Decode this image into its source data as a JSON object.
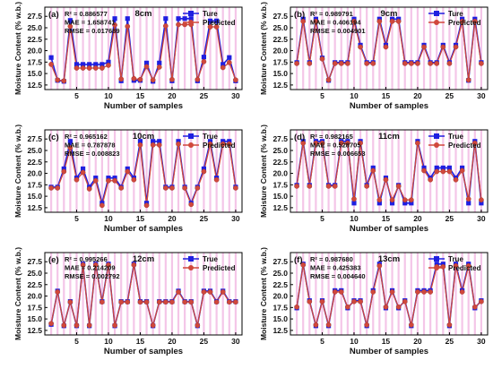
{
  "figure": {
    "ylabel": "Moisture Content (% w.b.)",
    "xlabel": "Number of samples"
  },
  "chart_data": [
    {
      "type": "line",
      "panel": "(a)",
      "title": "8cm",
      "stats": [
        "R² = 0.886577",
        "MAE = 1.658741",
        "RMSE = 0.017689"
      ],
      "legend_position": "top-right",
      "xlabel": "Number of samples",
      "ylabel": "Moisture Content (% w.b.)",
      "xlim": [
        0,
        31
      ],
      "ylim": [
        11.5,
        29.5
      ],
      "xticks": [
        5,
        10,
        15,
        20,
        25,
        30
      ],
      "yticks": [
        12.5,
        15.0,
        17.5,
        20.0,
        22.5,
        25.0,
        27.5
      ],
      "x": [
        1,
        2,
        3,
        4,
        5,
        6,
        7,
        8,
        9,
        10,
        11,
        12,
        13,
        14,
        15,
        16,
        17,
        18,
        19,
        20,
        21,
        22,
        23,
        24,
        25,
        26,
        27,
        28,
        29,
        30
      ],
      "series": [
        {
          "name": "Ture",
          "color": "#1f1fe0",
          "marker": "square",
          "values": [
            18.5,
            13.5,
            13.3,
            26.6,
            17.0,
            17.0,
            17.0,
            17.0,
            17.0,
            17.5,
            27.0,
            13.4,
            27.0,
            13.5,
            13.5,
            17.3,
            13.3,
            17.3,
            27.0,
            13.4,
            27.0,
            27.0,
            27.0,
            13.4,
            18.6,
            26.5,
            26.5,
            17.0,
            18.5,
            13.4
          ]
        },
        {
          "name": "Predicted",
          "color": "#d0483c",
          "marker": "circle",
          "values": [
            17.0,
            13.6,
            13.4,
            25.3,
            16.2,
            16.2,
            16.2,
            16.2,
            16.2,
            16.8,
            25.6,
            13.8,
            25.3,
            13.9,
            13.7,
            16.5,
            13.6,
            16.4,
            25.4,
            13.7,
            25.7,
            25.7,
            25.7,
            13.7,
            17.6,
            25.2,
            25.2,
            16.3,
            17.4,
            13.6
          ]
        }
      ]
    },
    {
      "type": "line",
      "panel": "(b)",
      "title": "9cm",
      "stats": [
        "R² = 0.989791",
        "MAE = 0.406194",
        "RMSE = 0.004901"
      ],
      "legend_position": "top-right",
      "xlabel": "Number of samples",
      "ylabel": "Moisture Content (% w.b.)",
      "xlim": [
        0,
        31
      ],
      "ylim": [
        11.5,
        29.5
      ],
      "xticks": [
        5,
        10,
        15,
        20,
        25,
        30
      ],
      "yticks": [
        12.5,
        15.0,
        17.5,
        20.0,
        22.5,
        25.0,
        27.5
      ],
      "x": [
        1,
        2,
        3,
        4,
        5,
        6,
        7,
        8,
        9,
        10,
        11,
        12,
        13,
        14,
        15,
        16,
        17,
        18,
        19,
        20,
        21,
        22,
        23,
        24,
        25,
        26,
        27,
        28,
        29,
        30
      ],
      "series": [
        {
          "name": "Ture",
          "color": "#1f1fe0",
          "marker": "square",
          "values": [
            17.4,
            26.9,
            17.4,
            26.9,
            18.4,
            13.5,
            17.4,
            17.4,
            17.4,
            26.9,
            21.2,
            17.4,
            17.4,
            26.9,
            21.2,
            26.9,
            26.9,
            17.4,
            17.4,
            17.4,
            21.2,
            17.4,
            17.4,
            21.2,
            17.4,
            21.2,
            26.9,
            13.5,
            26.9,
            17.4
          ]
        },
        {
          "name": "Predicted",
          "color": "#d0483c",
          "marker": "circle",
          "values": [
            17.2,
            26.4,
            17.2,
            26.4,
            18.2,
            13.6,
            17.2,
            17.2,
            17.2,
            26.4,
            20.8,
            17.2,
            17.2,
            26.4,
            20.8,
            26.4,
            26.4,
            17.2,
            17.2,
            17.2,
            20.8,
            17.2,
            17.2,
            20.8,
            17.2,
            20.8,
            26.4,
            13.6,
            26.4,
            17.2
          ]
        }
      ]
    },
    {
      "type": "line",
      "panel": "(c)",
      "title": "10cm",
      "stats": [
        "R² = 0.965162",
        "MAE = 0.787878",
        "RMSE = 0.008823"
      ],
      "legend_position": "top-right",
      "xlabel": "Number of samples",
      "ylabel": "Moisture Content (% w.b.)",
      "xlim": [
        0,
        31
      ],
      "ylim": [
        11.5,
        29.5
      ],
      "xticks": [
        5,
        10,
        15,
        20,
        25,
        30
      ],
      "yticks": [
        12.5,
        15.0,
        17.5,
        20.0,
        22.5,
        25.0,
        27.5
      ],
      "x": [
        1,
        2,
        3,
        4,
        5,
        6,
        7,
        8,
        9,
        10,
        11,
        12,
        13,
        14,
        15,
        16,
        17,
        18,
        19,
        20,
        21,
        22,
        23,
        24,
        25,
        26,
        27,
        28,
        29,
        30
      ],
      "series": [
        {
          "name": "True",
          "color": "#1f1fe0",
          "marker": "square",
          "values": [
            17.0,
            17.0,
            21.0,
            27.0,
            19.0,
            21.0,
            17.0,
            19.0,
            13.5,
            19.0,
            19.0,
            17.0,
            21.0,
            19.0,
            27.0,
            13.5,
            27.0,
            27.0,
            17.0,
            17.0,
            27.0,
            17.0,
            13.5,
            17.0,
            21.0,
            27.0,
            19.0,
            27.0,
            27.0,
            17.0
          ]
        },
        {
          "name": "Predicted",
          "color": "#d0483c",
          "marker": "circle",
          "values": [
            16.8,
            16.8,
            20.4,
            25.6,
            18.6,
            20.2,
            16.6,
            18.4,
            13.0,
            18.4,
            18.4,
            16.8,
            20.4,
            18.6,
            26.2,
            13.0,
            26.2,
            26.2,
            16.8,
            16.8,
            26.4,
            16.8,
            13.2,
            16.8,
            20.4,
            26.4,
            18.6,
            26.4,
            26.4,
            16.8
          ]
        }
      ]
    },
    {
      "type": "line",
      "panel": "(d)",
      "title": "11cm",
      "stats": [
        "R² = 0.982165",
        "MAE = 0.528705",
        "RMSE = 0.006653"
      ],
      "legend_position": "top-right",
      "xlabel": "Number of samples",
      "ylabel": "Moisture Content (% w.b.)",
      "xlim": [
        0,
        31
      ],
      "ylim": [
        11.5,
        29.5
      ],
      "xticks": [
        5,
        10,
        15,
        20,
        25,
        30
      ],
      "yticks": [
        12.5,
        15.0,
        17.5,
        20.0,
        22.5,
        25.0,
        27.5
      ],
      "x": [
        1,
        2,
        3,
        4,
        5,
        6,
        7,
        8,
        9,
        10,
        11,
        12,
        13,
        14,
        15,
        16,
        17,
        18,
        19,
        20,
        21,
        22,
        23,
        24,
        25,
        26,
        27,
        28,
        29,
        30
      ],
      "series": [
        {
          "name": "True",
          "color": "#1f1fe0",
          "marker": "square",
          "values": [
            17.4,
            27.0,
            17.4,
            27.0,
            27.0,
            17.4,
            17.4,
            27.0,
            27.0,
            13.5,
            27.0,
            17.4,
            21.2,
            13.5,
            19.0,
            13.5,
            17.4,
            13.5,
            13.5,
            27.0,
            21.2,
            19.0,
            21.2,
            21.2,
            21.2,
            19.0,
            21.2,
            13.5,
            27.0,
            13.5
          ]
        },
        {
          "name": "Predicted",
          "color": "#d0483c",
          "marker": "circle",
          "values": [
            17.2,
            26.6,
            17.2,
            26.6,
            26.6,
            17.2,
            17.2,
            26.6,
            26.6,
            14.4,
            26.6,
            17.2,
            20.6,
            14.2,
            18.6,
            14.2,
            17.2,
            14.2,
            14.2,
            26.6,
            20.6,
            18.6,
            20.4,
            20.4,
            20.4,
            18.6,
            20.6,
            14.4,
            26.6,
            14.2
          ]
        }
      ]
    },
    {
      "type": "line",
      "panel": "(e)",
      "title": "12cm",
      "stats": [
        "R² = 0.995266",
        "MAE = 0.214209",
        "RMSE = 0.002792"
      ],
      "legend_position": "top-right",
      "xlabel": "Number of samples",
      "ylabel": "Moisture Content (% w.b.)",
      "xlim": [
        0,
        31
      ],
      "ylim": [
        11.5,
        29.5
      ],
      "xticks": [
        5,
        10,
        15,
        20,
        25,
        30
      ],
      "yticks": [
        12.5,
        15.0,
        17.5,
        20.0,
        22.5,
        25.0,
        27.5
      ],
      "x": [
        1,
        2,
        3,
        4,
        5,
        6,
        7,
        8,
        9,
        10,
        11,
        12,
        13,
        14,
        15,
        16,
        17,
        18,
        19,
        20,
        21,
        22,
        23,
        24,
        25,
        26,
        27,
        28,
        29,
        30
      ],
      "series": [
        {
          "name": "True",
          "color": "#1f1fe0",
          "marker": "square",
          "values": [
            13.8,
            21.1,
            13.5,
            18.8,
            13.5,
            27.0,
            13.5,
            27.0,
            18.8,
            27.0,
            13.5,
            18.8,
            18.8,
            27.0,
            18.8,
            18.8,
            13.5,
            18.8,
            18.8,
            18.8,
            21.1,
            18.8,
            18.8,
            13.5,
            21.1,
            21.1,
            18.8,
            21.1,
            18.8,
            18.8
          ]
        },
        {
          "name": "Predicted",
          "color": "#d0483c",
          "marker": "circle",
          "values": [
            14.0,
            20.9,
            13.6,
            18.7,
            13.6,
            26.8,
            13.6,
            26.8,
            18.7,
            26.8,
            13.6,
            18.7,
            18.7,
            26.8,
            18.7,
            18.7,
            13.6,
            18.7,
            18.7,
            18.7,
            20.9,
            18.7,
            18.7,
            13.6,
            20.9,
            20.9,
            18.7,
            20.9,
            18.7,
            18.7
          ]
        }
      ]
    },
    {
      "type": "line",
      "panel": "(f)",
      "title": "13cm",
      "stats": [
        "R² = 0.987680",
        "MAE = 0.425383",
        "RMSE = 0.004640"
      ],
      "legend_position": "top-right",
      "xlabel": "Number of samples",
      "ylabel": "Moisture Content (% w.b.)",
      "xlim": [
        0,
        31
      ],
      "ylim": [
        11.5,
        29.5
      ],
      "xticks": [
        5,
        10,
        15,
        20,
        25,
        30
      ],
      "yticks": [
        12.5,
        15.0,
        17.5,
        20.0,
        22.5,
        25.0,
        27.5
      ],
      "x": [
        1,
        2,
        3,
        4,
        5,
        6,
        7,
        8,
        9,
        10,
        11,
        12,
        13,
        14,
        15,
        16,
        17,
        18,
        19,
        20,
        21,
        22,
        23,
        24,
        25,
        26,
        27,
        28,
        29,
        30
      ],
      "series": [
        {
          "name": "True",
          "color": "#1f1fe0",
          "marker": "square",
          "values": [
            17.4,
            27.0,
            19.0,
            13.5,
            19.0,
            13.5,
            21.2,
            21.2,
            17.4,
            19.0,
            19.0,
            13.5,
            21.2,
            27.0,
            17.4,
            21.2,
            17.4,
            19.0,
            13.5,
            21.2,
            21.2,
            21.2,
            27.0,
            27.0,
            13.5,
            27.0,
            21.2,
            27.0,
            17.4,
            19.0
          ]
        },
        {
          "name": "Predicted",
          "color": "#d0483c",
          "marker": "circle",
          "values": [
            17.6,
            26.8,
            18.8,
            13.7,
            18.8,
            13.7,
            20.9,
            20.9,
            17.6,
            18.8,
            18.8,
            13.7,
            20.9,
            26.6,
            17.6,
            20.9,
            17.6,
            18.8,
            13.7,
            20.9,
            20.9,
            20.9,
            26.4,
            26.4,
            13.7,
            26.6,
            20.9,
            26.6,
            17.6,
            18.8
          ]
        }
      ]
    }
  ]
}
